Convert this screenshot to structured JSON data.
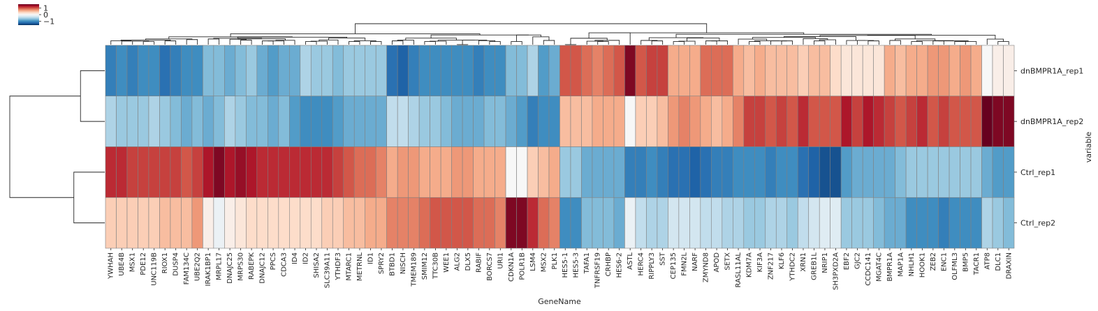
{
  "chart_data": {
    "type": "heatmap",
    "title": "",
    "xlabel": "GeneName",
    "ylabel": "variable",
    "rows": [
      "dnBMPR1A_rep1",
      "dnBMPR1A_rep2",
      "Ctrl_rep1",
      "Ctrl_rep2"
    ],
    "columns": [
      "YWHAH",
      "UBE4B",
      "MSX1",
      "PDE12",
      "UNC119B",
      "RIOX1",
      "DUSP4",
      "FAM134C",
      "UBE2Q2",
      "IRAK1BP1",
      "MRPL17",
      "DNAJC25",
      "MRPS30",
      "RABEPK",
      "DNAJC12",
      "PPCS",
      "CDCA3",
      "ID4",
      "ID2",
      "SHISA2",
      "SLC39A11",
      "YTHDF3",
      "MTARC1",
      "METRNL",
      "ID1",
      "SPRY2",
      "BTBD1",
      "NISCH",
      "TMEM189",
      "SMIM12",
      "TTC30B",
      "WEE1",
      "ALG2",
      "DLX5",
      "RABIF",
      "BORCS7",
      "URI1",
      "CDKN1A",
      "POLR1B",
      "LSM4",
      "MSX2",
      "PLK1",
      "HES5-1",
      "HES5-3",
      "TAFA1",
      "TNFRSF19",
      "CRHBP",
      "HES6-2",
      "ASTL",
      "HERC4",
      "RIPPLY3",
      "SST",
      "CEP135",
      "FMN2L",
      "NARF",
      "ZMYND8",
      "APOD",
      "SETX",
      "RASL11AL",
      "KDM7A",
      "KIF3A",
      "ZNF217",
      "KLF6",
      "YTHDC2",
      "XRN1",
      "GREB1L",
      "NRIP1",
      "SH3PXD2A",
      "EBF2",
      "GJC2",
      "CCDC141",
      "MGAT4C",
      "BMPR1A",
      "MAP1A",
      "NHLH1",
      "HOOK1",
      "ZEB2",
      "ENC1",
      "OLFML3",
      "BMP5",
      "TACR1",
      "ATP8",
      "DLC1",
      "DRAXIN"
    ],
    "values": [
      [
        -1.1,
        -1.0,
        -1.1,
        -1.0,
        -1.0,
        -1.2,
        -1.1,
        -1.0,
        -1.0,
        -0.7,
        -0.7,
        -0.8,
        -0.7,
        -0.6,
        -0.8,
        -0.9,
        -0.8,
        -0.8,
        -0.5,
        -0.6,
        -0.6,
        -0.7,
        -0.6,
        -0.6,
        -0.6,
        -0.6,
        -1.2,
        -1.3,
        -1.1,
        -1.0,
        -1.0,
        -1.0,
        -1.0,
        -1.0,
        -1.1,
        -1.0,
        -1.0,
        -0.7,
        -0.7,
        -0.5,
        -0.9,
        -0.8,
        1.0,
        1.0,
        0.9,
        0.8,
        0.9,
        1.0,
        1.5,
        1.0,
        1.1,
        1.1,
        0.6,
        0.6,
        0.6,
        0.9,
        0.9,
        0.9,
        0.6,
        0.5,
        0.6,
        0.5,
        0.5,
        0.5,
        0.4,
        0.5,
        0.5,
        0.3,
        0.2,
        0.2,
        0.2,
        0.2,
        0.6,
        0.5,
        0.6,
        0.6,
        0.7,
        0.7,
        0.6,
        0.7,
        0.6,
        0.0,
        0.1,
        0.1
      ],
      [
        -0.5,
        -0.6,
        -0.6,
        -0.6,
        -0.5,
        -0.6,
        -0.7,
        -0.8,
        -0.7,
        -0.8,
        -0.7,
        -0.5,
        -0.6,
        -0.7,
        -0.7,
        -0.8,
        -0.7,
        -0.9,
        -1.0,
        -1.0,
        -1.0,
        -0.9,
        -0.8,
        -0.8,
        -0.8,
        -0.8,
        -0.4,
        -0.4,
        -0.5,
        -0.6,
        -0.6,
        -0.7,
        -0.8,
        -0.8,
        -0.8,
        -0.7,
        -0.7,
        -0.8,
        -0.9,
        -1.1,
        -1.0,
        -1.0,
        0.5,
        0.5,
        0.5,
        0.6,
        0.6,
        0.6,
        0.0,
        0.4,
        0.4,
        0.5,
        0.7,
        0.8,
        0.7,
        0.6,
        0.5,
        0.6,
        0.8,
        1.1,
        1.1,
        1.0,
        1.1,
        1.0,
        1.2,
        1.0,
        1.0,
        1.0,
        1.3,
        1.1,
        1.3,
        1.2,
        1.1,
        1.0,
        1.1,
        1.2,
        1.0,
        1.1,
        1.0,
        1.0,
        1.0,
        1.7,
        1.5,
        1.5
      ],
      [
        1.2,
        1.2,
        1.1,
        1.1,
        1.1,
        1.1,
        1.1,
        1.0,
        1.1,
        1.3,
        1.5,
        1.3,
        1.4,
        1.3,
        1.2,
        1.2,
        1.2,
        1.2,
        1.2,
        1.2,
        1.2,
        1.1,
        1.0,
        0.9,
        0.9,
        0.8,
        0.6,
        0.7,
        0.7,
        0.6,
        0.6,
        0.6,
        0.7,
        0.7,
        0.6,
        0.6,
        0.6,
        0.0,
        0.0,
        0.4,
        0.5,
        0.6,
        -0.6,
        -0.6,
        -0.8,
        -0.8,
        -0.8,
        -0.8,
        -1.1,
        -1.1,
        -1.0,
        -1.1,
        -1.2,
        -1.2,
        -1.3,
        -1.2,
        -1.1,
        -1.1,
        -1.0,
        -1.0,
        -1.0,
        -1.1,
        -1.0,
        -1.0,
        -1.2,
        -1.3,
        -1.4,
        -1.4,
        -0.9,
        -0.8,
        -0.8,
        -0.8,
        -0.8,
        -0.7,
        -0.6,
        -0.6,
        -0.6,
        -0.6,
        -0.6,
        -0.6,
        -0.6,
        -0.8,
        -0.9,
        -0.9
      ],
      [
        0.4,
        0.4,
        0.4,
        0.4,
        0.4,
        0.5,
        0.5,
        0.5,
        0.7,
        0.1,
        -0.1,
        0.1,
        0.2,
        0.3,
        0.3,
        0.3,
        0.3,
        0.3,
        0.3,
        0.3,
        0.4,
        0.4,
        0.5,
        0.5,
        0.6,
        0.6,
        0.8,
        0.8,
        0.8,
        0.9,
        1.0,
        1.0,
        1.0,
        1.0,
        0.9,
        0.9,
        0.8,
        1.5,
        1.5,
        1.2,
        0.9,
        0.8,
        -1.0,
        -1.0,
        -0.7,
        -0.7,
        -0.7,
        -0.8,
        -0.1,
        -0.4,
        -0.5,
        -0.5,
        -0.3,
        -0.3,
        -0.3,
        -0.4,
        -0.4,
        -0.5,
        -0.5,
        -0.6,
        -0.6,
        -0.5,
        -0.5,
        -0.6,
        -0.4,
        -0.3,
        -0.2,
        -0.2,
        -0.6,
        -0.6,
        -0.6,
        -0.7,
        -0.8,
        -0.8,
        -1.0,
        -1.0,
        -1.0,
        -1.1,
        -1.0,
        -1.0,
        -1.0,
        -0.5,
        -0.6,
        -0.7
      ]
    ],
    "colorbar": {
      "ticks": [
        1,
        0,
        -1
      ],
      "tick_labels": [
        "1",
        "0",
        "−1"
      ],
      "range": [
        -1.6,
        1.6
      ],
      "cmap": [
        "#053061",
        "#2166ac",
        "#4393c3",
        "#92c5de",
        "#d1e5f0",
        "#f7f7f7",
        "#fddbc7",
        "#f4a582",
        "#d6604d",
        "#b2182b",
        "#67001f"
      ]
    },
    "grid": false,
    "cell_border_color": "#808080",
    "dendrograms": [
      "top-columns",
      "left-rows"
    ]
  }
}
